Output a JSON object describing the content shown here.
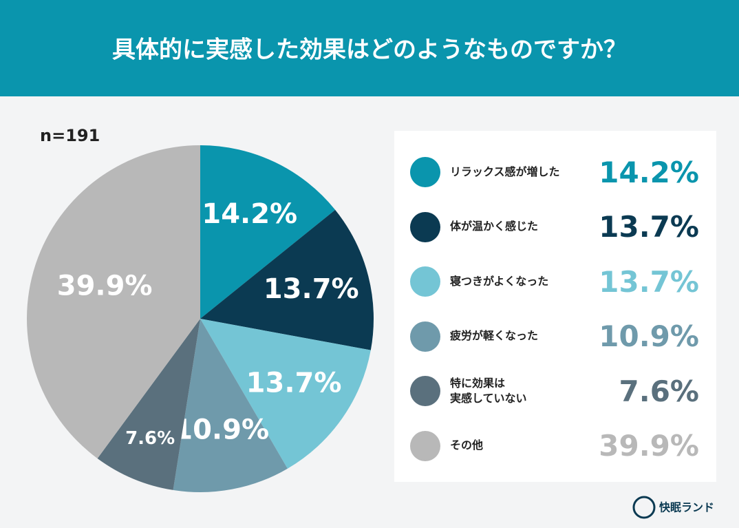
{
  "chart_data": {
    "type": "pie",
    "title": "具体的に実感した効果はどのようなものですか？",
    "subtitle": "n=191",
    "categories": [
      "リラックス感が増した",
      "体が温かく感じた",
      "寝つきがよくなった",
      "疲労が軽くなった",
      "特に効果は\n実感していない",
      "その他"
    ],
    "values": [
      14.2,
      13.7,
      13.7,
      10.9,
      7.6,
      39.9
    ],
    "value_labels": [
      "14.2%",
      "13.7%",
      "13.7%",
      "10.9%",
      "7.6%",
      "39.9%"
    ],
    "colors": [
      "#0a95ad",
      "#0b3a52",
      "#74c5d5",
      "#6f9aab",
      "#5a707d",
      "#b8b8b8"
    ]
  },
  "brand": "快眠ランド"
}
